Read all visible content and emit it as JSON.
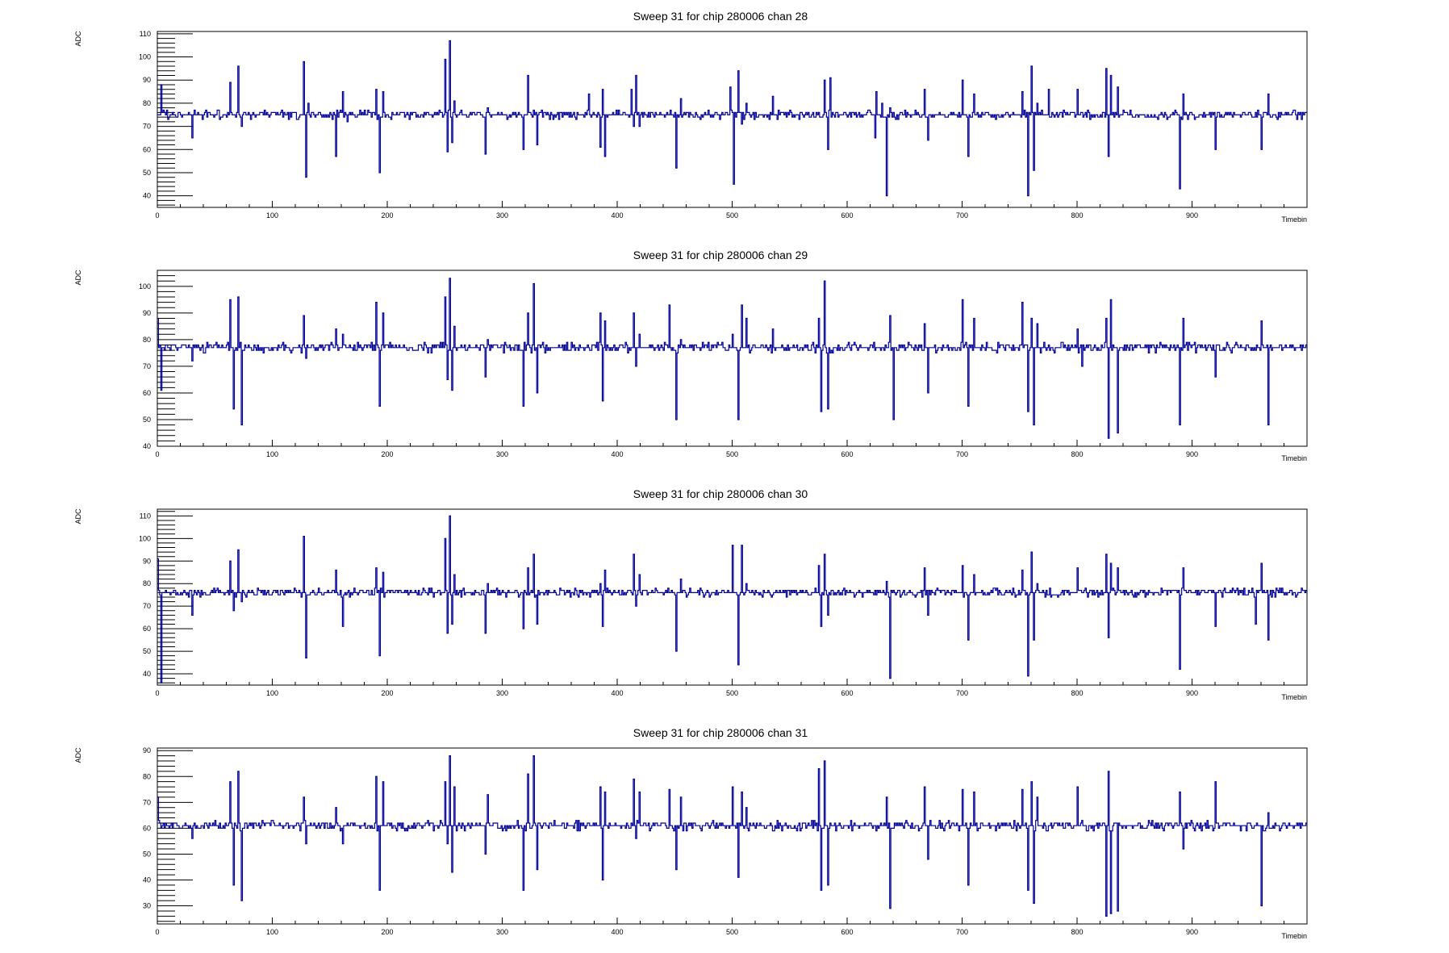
{
  "chart_data": [
    {
      "type": "line",
      "title": "Sweep 31 for chip 280006 chan 28",
      "xlabel": "Timebin",
      "ylabel": "ADC",
      "xlim": [
        0,
        1000
      ],
      "ylim": [
        35,
        111
      ],
      "xticks": [
        0,
        100,
        200,
        300,
        400,
        500,
        600,
        700,
        800,
        900
      ],
      "yticks": [
        40,
        50,
        60,
        70,
        80,
        90,
        100,
        110
      ],
      "baseline": 75,
      "color": "#000099",
      "series": [
        {
          "x": [
            0,
            3,
            8,
            30,
            32,
            63,
            66,
            70,
            73,
            127,
            129,
            131,
            155,
            161,
            165,
            190,
            193,
            196,
            250,
            252,
            254,
            256,
            258,
            285,
            287,
            290,
            318,
            322,
            327,
            330,
            375,
            385,
            387,
            389,
            412,
            414,
            416,
            419,
            451,
            455,
            459,
            498,
            501,
            505,
            508,
            512,
            535,
            580,
            583,
            585,
            624,
            625,
            630,
            634,
            637,
            667,
            670,
            700,
            705,
            710,
            752,
            757,
            760,
            762,
            765,
            775,
            800,
            825,
            827,
            829,
            835,
            889,
            892,
            920,
            960,
            966
          ],
          "y": [
            75,
            88,
            77,
            65,
            77,
            89,
            75,
            96,
            70,
            98,
            48,
            80,
            57,
            85,
            72,
            86,
            50,
            85,
            99,
            59,
            107,
            63,
            81,
            58,
            78,
            74,
            60,
            92,
            77,
            62,
            84,
            61,
            86,
            57,
            86,
            70,
            92,
            70,
            52,
            82,
            75,
            87,
            45,
            94,
            71,
            80,
            83,
            90,
            60,
            91,
            65,
            85,
            80,
            40,
            78,
            86,
            64,
            90,
            57,
            84,
            85,
            40,
            96,
            51,
            80,
            86,
            86,
            95,
            57,
            92,
            87,
            43,
            84,
            60,
            60,
            84
          ]
        }
      ]
    },
    {
      "type": "line",
      "title": "Sweep 31 for chip 280006 chan 29",
      "xlabel": "Timebin",
      "ylabel": "ADC",
      "xlim": [
        0,
        1000
      ],
      "ylim": [
        40,
        106
      ],
      "xticks": [
        0,
        100,
        200,
        300,
        400,
        500,
        600,
        700,
        800,
        900
      ],
      "yticks": [
        40,
        50,
        60,
        70,
        80,
        90,
        100
      ],
      "baseline": 77,
      "color": "#000099",
      "series": [
        {
          "x": [
            0,
            3,
            30,
            63,
            66,
            70,
            73,
            127,
            129,
            155,
            161,
            190,
            193,
            196,
            250,
            252,
            254,
            256,
            258,
            285,
            287,
            318,
            322,
            327,
            330,
            385,
            387,
            389,
            414,
            416,
            419,
            445,
            451,
            455,
            500,
            505,
            508,
            512,
            535,
            575,
            577,
            580,
            583,
            637,
            640,
            667,
            670,
            700,
            705,
            710,
            752,
            757,
            760,
            762,
            765,
            800,
            804,
            825,
            827,
            829,
            835,
            889,
            892,
            920,
            960,
            966
          ],
          "y": [
            88,
            61,
            72,
            95,
            54,
            96,
            48,
            89,
            73,
            84,
            82,
            94,
            55,
            90,
            96,
            65,
            103,
            61,
            85,
            66,
            80,
            55,
            90,
            101,
            60,
            90,
            57,
            87,
            90,
            70,
            82,
            93,
            50,
            80,
            82,
            50,
            93,
            88,
            84,
            88,
            53,
            102,
            54,
            89,
            50,
            86,
            60,
            95,
            55,
            88,
            94,
            53,
            88,
            48,
            86,
            84,
            70,
            88,
            43,
            95,
            45,
            48,
            88,
            66,
            87,
            48
          ]
        }
      ]
    },
    {
      "type": "line",
      "title": "Sweep 31 for chip 280006 chan 30",
      "xlabel": "Timebin",
      "ylabel": "ADC",
      "xlim": [
        0,
        1000
      ],
      "ylim": [
        35,
        113
      ],
      "xticks": [
        0,
        100,
        200,
        300,
        400,
        500,
        600,
        700,
        800,
        900
      ],
      "yticks": [
        40,
        50,
        60,
        70,
        80,
        90,
        100,
        110
      ],
      "baseline": 76,
      "color": "#000099",
      "series": [
        {
          "x": [
            0,
            3,
            30,
            63,
            66,
            70,
            73,
            127,
            129,
            155,
            161,
            190,
            193,
            196,
            250,
            252,
            254,
            256,
            258,
            285,
            287,
            318,
            322,
            327,
            330,
            385,
            387,
            389,
            414,
            416,
            419,
            451,
            455,
            500,
            505,
            508,
            512,
            575,
            577,
            580,
            583,
            634,
            637,
            667,
            670,
            700,
            705,
            710,
            752,
            757,
            760,
            762,
            765,
            800,
            825,
            827,
            829,
            835,
            889,
            892,
            920,
            955,
            960,
            966
          ],
          "y": [
            91,
            36,
            66,
            90,
            68,
            95,
            72,
            101,
            47,
            86,
            61,
            87,
            48,
            85,
            100,
            58,
            110,
            62,
            84,
            58,
            80,
            60,
            87,
            93,
            62,
            80,
            61,
            86,
            93,
            70,
            84,
            50,
            82,
            97,
            44,
            97,
            80,
            88,
            61,
            93,
            66,
            81,
            38,
            87,
            66,
            88,
            55,
            84,
            86,
            39,
            94,
            55,
            80,
            87,
            93,
            56,
            89,
            87,
            42,
            87,
            61,
            62,
            89,
            55
          ]
        }
      ]
    },
    {
      "type": "line",
      "title": "Sweep 31 for chip 280006 chan 31",
      "xlabel": "Timebin",
      "ylabel": "ADC",
      "xlim": [
        0,
        1000
      ],
      "ylim": [
        23,
        91
      ],
      "xticks": [
        0,
        100,
        200,
        300,
        400,
        500,
        600,
        700,
        800,
        900
      ],
      "yticks": [
        30,
        40,
        50,
        60,
        70,
        80,
        90
      ],
      "baseline": 61,
      "color": "#000099",
      "series": [
        {
          "x": [
            0,
            3,
            30,
            63,
            66,
            70,
            73,
            127,
            129,
            155,
            161,
            190,
            193,
            196,
            250,
            252,
            254,
            256,
            258,
            285,
            287,
            318,
            322,
            327,
            330,
            385,
            387,
            389,
            414,
            416,
            419,
            445,
            451,
            455,
            500,
            505,
            508,
            512,
            575,
            577,
            580,
            583,
            634,
            637,
            667,
            670,
            700,
            705,
            710,
            752,
            757,
            760,
            762,
            765,
            800,
            825,
            827,
            829,
            835,
            889,
            892,
            920,
            960,
            966
          ],
          "y": [
            72,
            60,
            56,
            78,
            38,
            82,
            32,
            72,
            54,
            68,
            54,
            80,
            36,
            78,
            78,
            54,
            88,
            43,
            76,
            50,
            73,
            36,
            81,
            88,
            44,
            76,
            40,
            74,
            79,
            56,
            74,
            75,
            44,
            72,
            76,
            41,
            74,
            68,
            83,
            36,
            86,
            38,
            72,
            29,
            76,
            48,
            75,
            38,
            74,
            75,
            36,
            78,
            31,
            72,
            76,
            26,
            82,
            27,
            28,
            74,
            52,
            78,
            30,
            66
          ]
        }
      ]
    }
  ]
}
